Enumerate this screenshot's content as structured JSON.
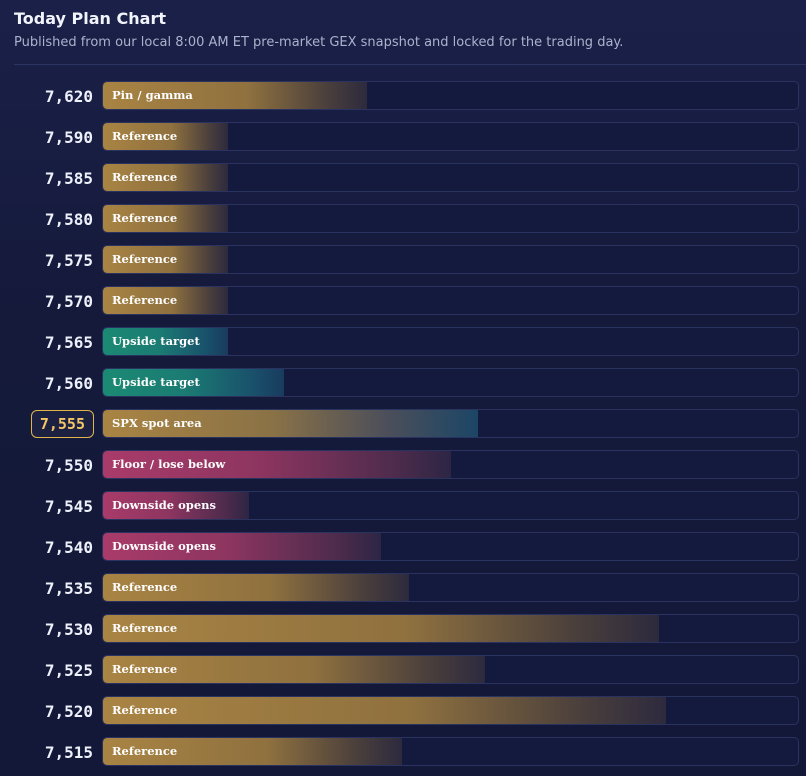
{
  "header": {
    "title": "Today Plan Chart",
    "subtitle": "Published from our local 8:00 AM ET pre-market GEX snapshot and locked for the trading day."
  },
  "colors": {
    "gold": "#a98443",
    "teal": "#1b8a73",
    "pink": "#a93b6a",
    "spot_border": "#e3b34e",
    "background": "#161c3d"
  },
  "levels": [
    {
      "price": "7,620",
      "label": "Pin / gamma",
      "kind": "gold",
      "fill_fraction": 0.38
    },
    {
      "price": "7,590",
      "label": "Reference",
      "kind": "gold",
      "fill_fraction": 0.18
    },
    {
      "price": "7,585",
      "label": "Reference",
      "kind": "gold",
      "fill_fraction": 0.18
    },
    {
      "price": "7,580",
      "label": "Reference",
      "kind": "gold",
      "fill_fraction": 0.18
    },
    {
      "price": "7,575",
      "label": "Reference",
      "kind": "gold",
      "fill_fraction": 0.18
    },
    {
      "price": "7,570",
      "label": "Reference",
      "kind": "gold",
      "fill_fraction": 0.18
    },
    {
      "price": "7,565",
      "label": "Upside target",
      "kind": "teal",
      "fill_fraction": 0.18
    },
    {
      "price": "7,560",
      "label": "Upside target",
      "kind": "teal",
      "fill_fraction": 0.26
    },
    {
      "price": "7,555",
      "label": "SPX spot area",
      "kind": "spot",
      "fill_fraction": 0.54,
      "is_spot": true
    },
    {
      "price": "7,550",
      "label": "Floor / lose below",
      "kind": "pink",
      "fill_fraction": 0.5
    },
    {
      "price": "7,545",
      "label": "Downside opens",
      "kind": "pink",
      "fill_fraction": 0.21
    },
    {
      "price": "7,540",
      "label": "Downside opens",
      "kind": "pink",
      "fill_fraction": 0.4
    },
    {
      "price": "7,535",
      "label": "Reference",
      "kind": "gold",
      "fill_fraction": 0.44
    },
    {
      "price": "7,530",
      "label": "Reference",
      "kind": "gold",
      "fill_fraction": 0.8
    },
    {
      "price": "7,525",
      "label": "Reference",
      "kind": "gold",
      "fill_fraction": 0.55
    },
    {
      "price": "7,520",
      "label": "Reference",
      "kind": "gold",
      "fill_fraction": 0.81
    },
    {
      "price": "7,515",
      "label": "Reference",
      "kind": "gold",
      "fill_fraction": 0.43
    }
  ]
}
